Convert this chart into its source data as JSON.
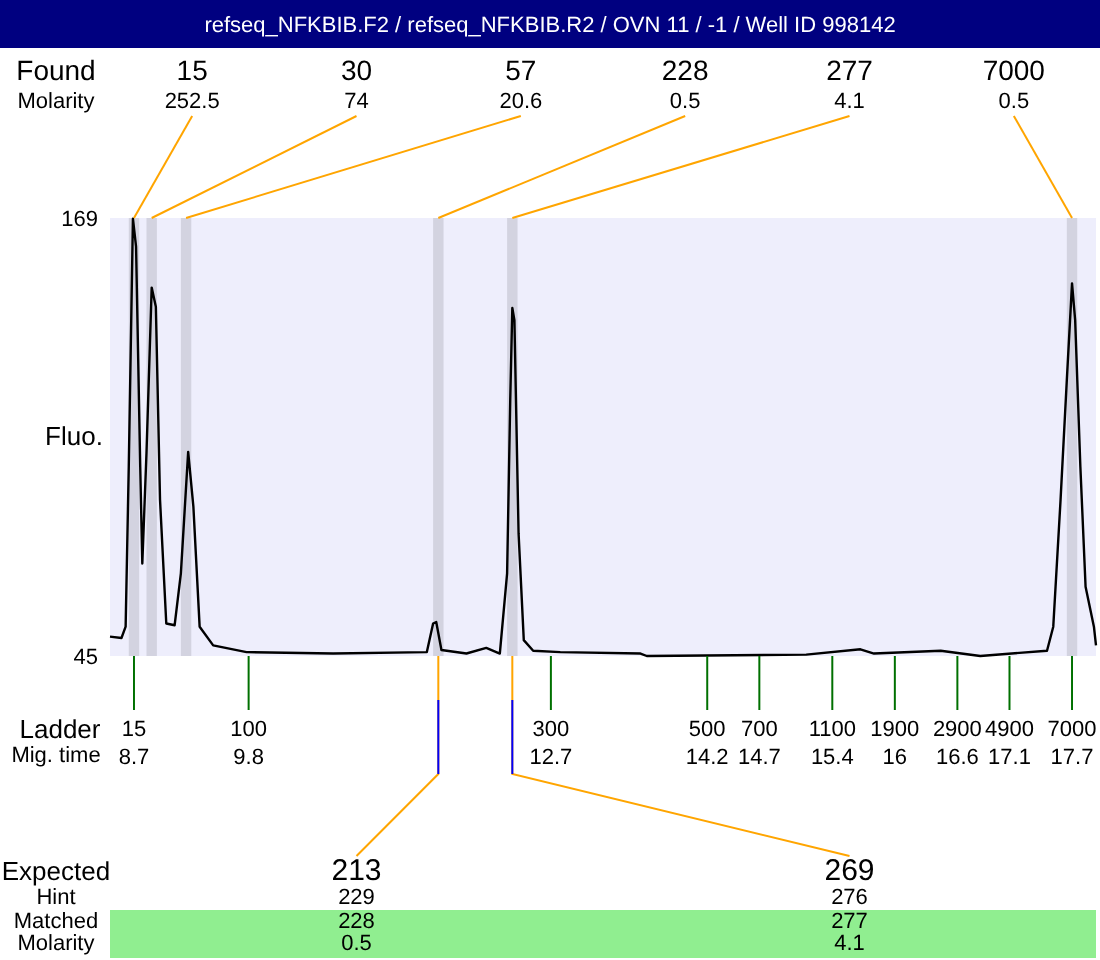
{
  "chart_data": {
    "type": "line",
    "title": "refseq_NFKBIB.F2 / refseq_NFKBIB.R2 / OVN 11  / -1 / Well ID 998142",
    "xlabel": "Mig. time",
    "ylabel": "Fluo.",
    "xlim": [
      8.47,
      17.93
    ],
    "ylim": [
      45,
      169
    ],
    "yticks": [
      45,
      169
    ],
    "xticks": [
      8.7,
      9.8,
      12.7,
      14.2,
      14.7,
      15.4,
      16,
      16.6,
      17.1,
      17.7
    ],
    "series": [
      {
        "color": "#000000",
        "x": [
          8.47,
          8.58,
          8.62,
          8.65,
          8.69,
          8.72,
          8.76,
          8.78,
          8.82,
          8.87,
          8.91,
          8.95,
          9.01,
          9.09,
          9.15,
          9.22,
          9.27,
          9.33,
          9.46,
          9.78,
          10.61,
          11.51,
          11.57,
          11.6,
          11.65,
          11.89,
          12.08,
          12.21,
          12.28,
          12.31,
          12.33,
          12.35,
          12.39,
          12.44,
          12.53,
          12.79,
          13.56,
          13.62,
          15.15,
          15.67,
          15.8,
          16.44,
          16.82,
          17.46,
          17.52,
          17.59,
          17.65,
          17.7,
          17.73,
          17.78,
          17.83,
          17.91,
          17.93
        ],
        "values": [
          50.5,
          50.1,
          53.3,
          98.6,
          168.8,
          160.9,
          98.6,
          71.2,
          102.4,
          149.3,
          143.9,
          89.2,
          54.2,
          53.7,
          68.4,
          102.8,
          87.3,
          53.3,
          48,
          46.1,
          45.7,
          46.1,
          54.2,
          54.6,
          46.7,
          45.7,
          47.3,
          45.7,
          68.4,
          117.5,
          143.5,
          140.1,
          79.7,
          49.5,
          46.5,
          46.1,
          45.7,
          45,
          45.4,
          46.9,
          45.7,
          46.5,
          45,
          46.5,
          53.3,
          89.2,
          123.1,
          150.5,
          140.1,
          98.6,
          64.6,
          53.3,
          48
        ]
      }
    ],
    "bands": [
      {
        "axis": "x",
        "from": 8.65,
        "to": 8.75,
        "color": "#d3d3e0"
      },
      {
        "axis": "x",
        "from": 8.82,
        "to": 8.92,
        "color": "#d3d3e0"
      },
      {
        "axis": "x",
        "from": 9.15,
        "to": 9.25,
        "color": "#d3d3e0"
      },
      {
        "axis": "x",
        "from": 11.57,
        "to": 11.67,
        "color": "#d3d3e0"
      },
      {
        "axis": "x",
        "from": 12.28,
        "to": 12.38,
        "color": "#d3d3e0"
      },
      {
        "axis": "x",
        "from": 17.65,
        "to": 17.75,
        "color": "#d3d3e0"
      }
    ],
    "annotations": [
      "Found",
      "Molarity",
      "Ladder",
      "15",
      "100",
      "300",
      "500",
      "700",
      "1100",
      "1900",
      "2900",
      "4900",
      "7000",
      "Expected",
      "Hint",
      "Matched",
      "Molarity",
      "229",
      "228",
      "0.5",
      "276",
      "277",
      "4.1",
      {
        "text": "15",
        "x": 8.7,
        "y": 169
      },
      {
        "text": "252.5",
        "x": 8.7,
        "y": 169
      },
      {
        "text": "30",
        "x": 8.87,
        "y": 169
      },
      {
        "text": "74",
        "x": 8.87,
        "y": 169
      },
      {
        "text": "57",
        "x": 9.2,
        "y": 169
      },
      {
        "text": "20.6",
        "x": 9.2,
        "y": 169
      },
      {
        "text": "228",
        "x": 11.62,
        "y": 169
      },
      {
        "text": "0.5",
        "x": 11.62,
        "y": 169
      },
      {
        "text": "277",
        "x": 12.33,
        "y": 169
      },
      {
        "text": "4.1",
        "x": 12.33,
        "y": 169
      },
      {
        "text": "7000",
        "x": 17.7,
        "y": 169
      },
      {
        "text": "0.5",
        "x": 17.7,
        "y": 169
      },
      {
        "text": "213",
        "x": 11.62,
        "y": 45
      },
      {
        "text": "269",
        "x": 12.33,
        "y": 45
      }
    ],
    "grid": false
  }
}
